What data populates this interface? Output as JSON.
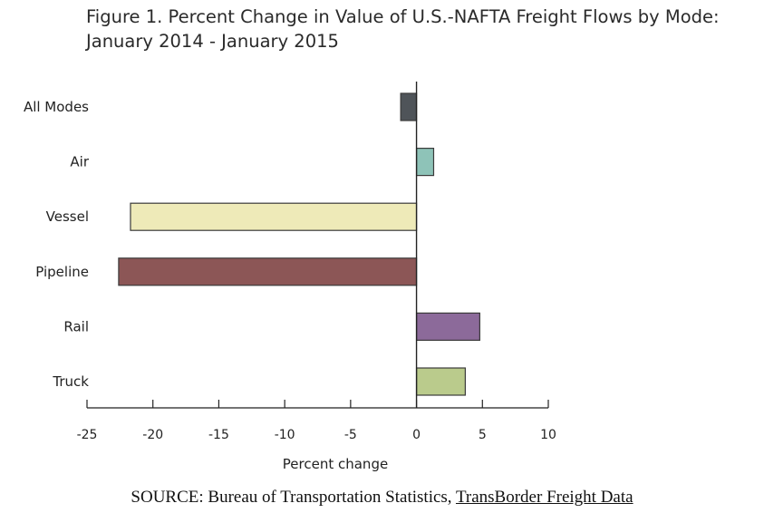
{
  "chart_data": {
    "type": "bar",
    "orientation": "horizontal",
    "title": "Figure 1.  Percent Change in Value of U.S.-NAFTA Freight Flows by Mode: January 2014 - January 2015",
    "xlabel": "Percent change",
    "ylabel": "",
    "xlim": [
      -25,
      10
    ],
    "xticks": [
      -25,
      -20,
      -15,
      -10,
      -5,
      0,
      5,
      10
    ],
    "xtick_labels": [
      "-25",
      "-20",
      "-15",
      "-10",
      "-5",
      "0",
      "5",
      "10"
    ],
    "grid": false,
    "categories": [
      "All Modes",
      "Air",
      "Vessel",
      "Pipeline",
      "Rail",
      "Truck"
    ],
    "values": [
      -1.2,
      1.3,
      -21.7,
      -22.6,
      4.8,
      3.7
    ],
    "colors": [
      "#4f5459",
      "#8ec3b8",
      "#eeeab8",
      "#8c5656",
      "#8c6a9a",
      "#bacb8c"
    ]
  },
  "source": {
    "prefix": "SOURCE: Bureau of Transportation Statistics, ",
    "link_text": "TransBorder Freight Data"
  }
}
